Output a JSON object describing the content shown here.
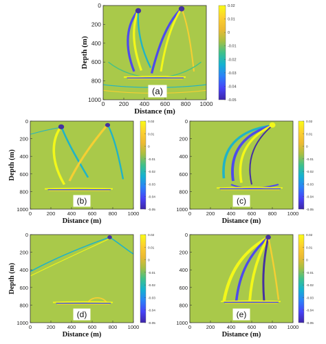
{
  "figure": {
    "colormap": [
      "#3e26a8",
      "#4743f8",
      "#2c81f8",
      "#14b2d1",
      "#3fc18a",
      "#a8bf42",
      "#edba33",
      "#fcd030",
      "#f9fb15"
    ],
    "background_color": "#a9c94a"
  },
  "chart_data": [
    {
      "type": "heatmap",
      "panel_label": "(a)",
      "xlabel": "Distance (m)",
      "ylabel": "Depth (m)",
      "xlim": [
        0,
        1000
      ],
      "ylim": [
        0,
        1000
      ],
      "xticks": [
        "0",
        "200",
        "400",
        "600",
        "800",
        "1000"
      ],
      "yticks": [
        "0",
        "200",
        "400",
        "600",
        "800",
        "1000"
      ],
      "colorbar": {
        "range": [
          -0.05,
          0.02
        ],
        "ticks": [
          "0.02",
          "0.01",
          "0",
          "-0.01",
          "-0.02",
          "-0.03",
          "-0.04",
          "-0.05"
        ]
      },
      "sources": [
        {
          "x": 340,
          "y": 50
        },
        {
          "x": 760,
          "y": 30
        }
      ],
      "reflector_depth": 760
    },
    {
      "type": "heatmap",
      "panel_label": "(b)",
      "xlabel": "Distance (m)",
      "ylabel": "Depth (m)",
      "xlim": [
        0,
        1000
      ],
      "ylim": [
        0,
        1000
      ],
      "xticks": [
        "0",
        "200",
        "400",
        "600",
        "800",
        "1000"
      ],
      "yticks": [
        "0",
        "200",
        "400",
        "600",
        "800",
        "1000"
      ],
      "colorbar": {
        "range": [
          -0.05,
          0.02
        ],
        "ticks": [
          "0.02",
          "0.01",
          "0",
          "-0.01",
          "-0.02",
          "-0.03",
          "-0.04",
          "-0.05"
        ]
      },
      "sources": [
        {
          "x": 300,
          "y": 60
        },
        {
          "x": 750,
          "y": 40
        }
      ],
      "reflector_depth": 770
    },
    {
      "type": "heatmap",
      "panel_label": "(c)",
      "xlabel": "Distance (m)",
      "ylabel": "",
      "xlim": [
        0,
        1000
      ],
      "ylim": [
        0,
        1000
      ],
      "xticks": [
        "0",
        "200",
        "400",
        "600",
        "800",
        "1000"
      ],
      "yticks": [
        "0",
        "200",
        "400",
        "600",
        "800",
        "1000"
      ],
      "colorbar": {
        "range": [
          -0.05,
          0.02
        ],
        "ticks": [
          "0.02",
          "0.01",
          "0",
          "-0.01",
          "-0.02",
          "-0.03",
          "-0.04",
          "-0.05"
        ]
      },
      "sources": [
        {
          "x": 800,
          "y": 50
        }
      ],
      "reflector_depth": 760
    },
    {
      "type": "heatmap",
      "panel_label": "(d)",
      "xlabel": "Distance (m)",
      "ylabel": "Depth (m)",
      "xlim": [
        0,
        1000
      ],
      "ylim": [
        0,
        1000
      ],
      "xticks": [
        "0",
        "200",
        "400",
        "600",
        "800",
        "1000"
      ],
      "yticks": [
        "0",
        "200",
        "400",
        "600",
        "800",
        "1000"
      ],
      "colorbar": {
        "range": [
          -0.05,
          0.02
        ],
        "ticks": [
          "0.02",
          "0.01",
          "0",
          "-0.01",
          "-0.02",
          "-0.03",
          "-0.04",
          "-0.05"
        ]
      },
      "sources": [
        {
          "x": 770,
          "y": 30
        }
      ],
      "reflector_depth": 770
    },
    {
      "type": "heatmap",
      "panel_label": "(e)",
      "xlabel": "Distance (m)",
      "ylabel": "",
      "xlim": [
        0,
        1000
      ],
      "ylim": [
        0,
        1000
      ],
      "xticks": [
        "0",
        "200",
        "400",
        "600",
        "800",
        "1000"
      ],
      "yticks": [
        "0",
        "200",
        "400",
        "600",
        "800",
        "1000"
      ],
      "colorbar": {
        "range": [
          -0.05,
          0.02
        ],
        "ticks": [
          "0.02",
          "0.01",
          "0",
          "-0.01",
          "-0.02",
          "-0.03",
          "-0.04",
          "-0.05"
        ]
      },
      "sources": [
        {
          "x": 760,
          "y": 30
        }
      ],
      "reflector_depth": 760
    }
  ]
}
